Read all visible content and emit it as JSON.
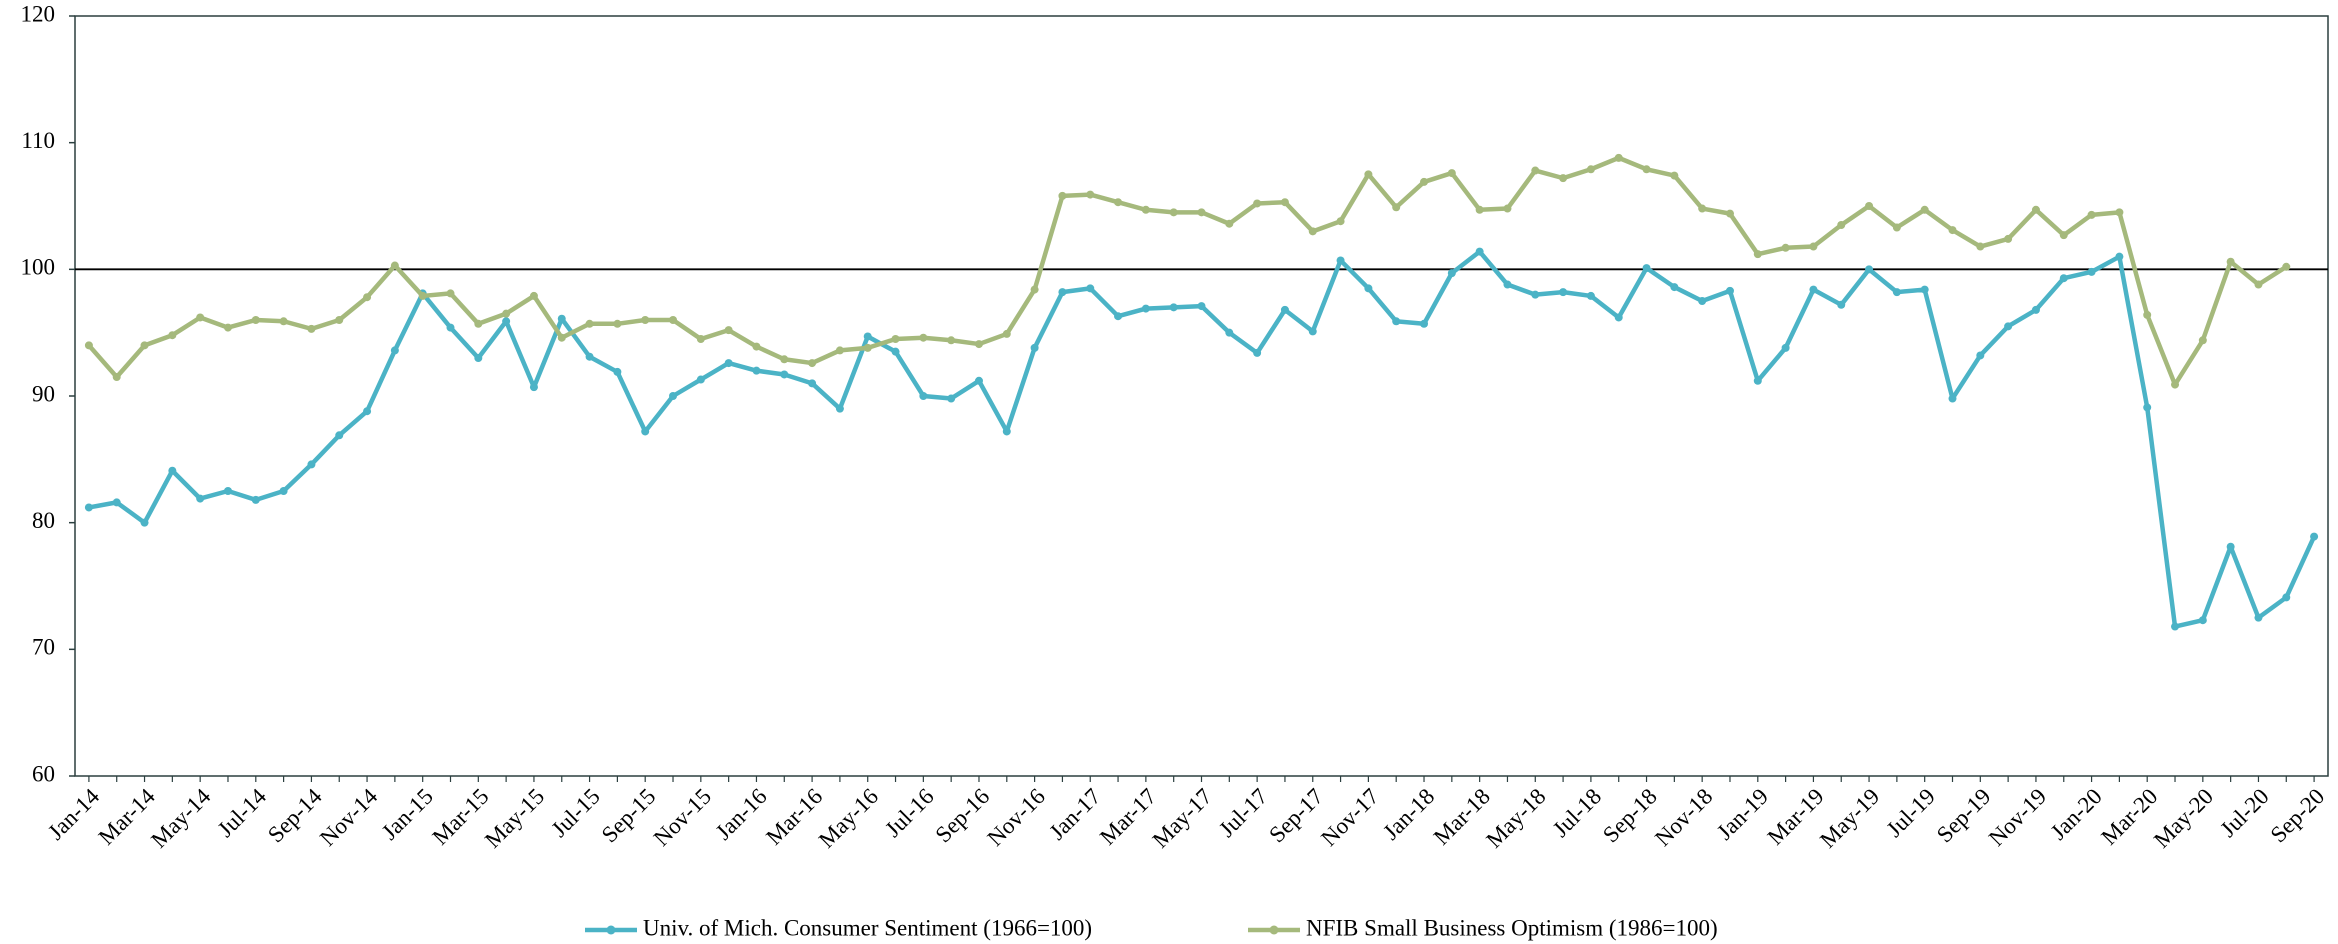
{
  "chart_data": {
    "type": "line",
    "categories": [
      "Jan-14",
      null,
      "Mar-14",
      null,
      "May-14",
      null,
      "Jul-14",
      null,
      "Sep-14",
      null,
      "Nov-14",
      null,
      "Jan-15",
      null,
      "Mar-15",
      null,
      "May-15",
      null,
      "Jul-15",
      null,
      "Sep-15",
      null,
      "Nov-15",
      null,
      "Jan-16",
      null,
      "Mar-16",
      null,
      "May-16",
      null,
      "Jul-16",
      null,
      "Sep-16",
      null,
      "Nov-16",
      null,
      "Jan-17",
      null,
      "Mar-17",
      null,
      "May-17",
      null,
      "Jul-17",
      null,
      "Sep-17",
      null,
      "Nov-17",
      null,
      "Jan-18",
      null,
      "Mar-18",
      null,
      "May-18",
      null,
      "Jul-18",
      null,
      "Sep-18",
      null,
      "Nov-18",
      null,
      "Jan-19",
      null,
      "Mar-19",
      null,
      "May-19",
      null,
      "Jul-19",
      null,
      "Sep-19",
      null,
      "Nov-19",
      null,
      "Jan-20",
      null,
      "Mar-20",
      null,
      "May-20",
      null,
      "Jul-20",
      null,
      "Sep-20"
    ],
    "series": [
      {
        "name": "Univ. of Mich. Consumer Sentiment (1966=100)",
        "color": "#4bb3c6",
        "values": [
          81.2,
          81.6,
          80.0,
          84.1,
          81.9,
          82.5,
          81.8,
          82.5,
          84.6,
          86.9,
          88.8,
          93.6,
          98.1,
          95.4,
          93.0,
          95.9,
          90.7,
          96.1,
          93.1,
          91.9,
          87.2,
          90.0,
          91.3,
          92.6,
          92.0,
          91.7,
          91.0,
          89.0,
          94.7,
          93.5,
          90.0,
          89.8,
          91.2,
          87.2,
          93.8,
          98.2,
          98.5,
          96.3,
          96.9,
          97.0,
          97.1,
          95.0,
          93.4,
          96.8,
          95.1,
          100.7,
          98.5,
          95.9,
          95.7,
          99.7,
          101.4,
          98.8,
          98.0,
          98.2,
          97.9,
          96.2,
          100.1,
          98.6,
          97.5,
          98.3,
          91.2,
          93.8,
          98.4,
          97.2,
          100.0,
          98.2,
          98.4,
          89.8,
          93.2,
          95.5,
          96.8,
          99.3,
          99.8,
          101.0,
          89.1,
          71.8,
          72.3,
          78.1,
          72.5,
          74.1,
          78.9
        ]
      },
      {
        "name": "NFIB Small Business Optimism (1986=100)",
        "color": "#a5b97c",
        "values": [
          94.0,
          91.5,
          94.0,
          94.8,
          96.2,
          95.4,
          96.0,
          95.9,
          95.3,
          96.0,
          97.8,
          100.3,
          97.9,
          98.1,
          95.7,
          96.5,
          97.9,
          94.6,
          95.7,
          95.7,
          96.0,
          96.0,
          94.5,
          95.2,
          93.9,
          92.9,
          92.6,
          93.6,
          93.8,
          94.5,
          94.6,
          94.4,
          94.1,
          94.9,
          98.4,
          105.8,
          105.9,
          105.3,
          104.7,
          104.5,
          104.5,
          103.6,
          105.2,
          105.3,
          103.0,
          103.8,
          107.5,
          104.9,
          106.9,
          107.6,
          104.7,
          104.8,
          107.8,
          107.2,
          107.9,
          108.8,
          107.9,
          107.4,
          104.8,
          104.4,
          101.2,
          101.7,
          101.8,
          103.5,
          105.0,
          103.3,
          104.7,
          103.1,
          101.8,
          102.4,
          104.7,
          102.7,
          104.3,
          104.5,
          96.4,
          90.9,
          94.4,
          100.6,
          98.8,
          100.2,
          null
        ]
      }
    ],
    "reference_line": 100,
    "ylim": [
      60,
      120
    ],
    "yticks": [
      60,
      70,
      80,
      90,
      100,
      110,
      120
    ],
    "grid": false,
    "legend": "bottom"
  }
}
